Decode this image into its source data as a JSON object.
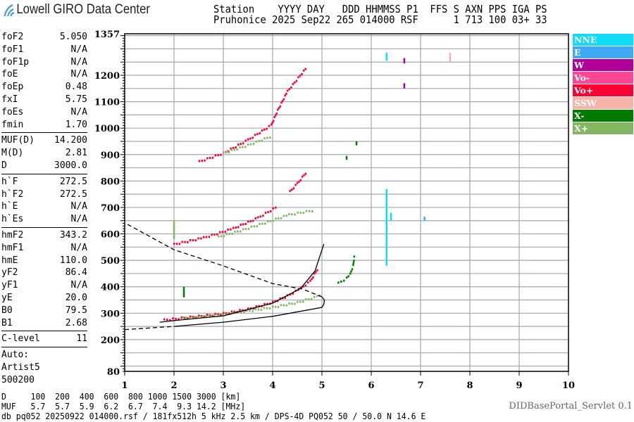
{
  "logo": {
    "text": "Lowell GIRO Data Center"
  },
  "header": {
    "line1": "Station    YYYY DAY   DDD HHMMSS P1  FFS S AXN PPS IGA PS",
    "line2": "Pruhonice 2025 Sep22 265 014000 RSF      1 713 100 03+ 33"
  },
  "params": [
    [
      {
        "k": "foF2",
        "v": "5.050"
      },
      {
        "k": "foF1",
        "v": "N/A"
      },
      {
        "k": "foF1p",
        "v": "N/A"
      },
      {
        "k": "foE",
        "v": "N/A"
      },
      {
        "k": "foEp",
        "v": "0.48"
      },
      {
        "k": "fxI",
        "v": "5.75"
      },
      {
        "k": "foEs",
        "v": "N/A"
      },
      {
        "k": "fmin",
        "v": "1.70"
      }
    ],
    [
      {
        "k": "MUF(D)",
        "v": "14.200"
      },
      {
        "k": "M(D)",
        "v": "2.81"
      },
      {
        "k": "D",
        "v": "3000.0"
      }
    ],
    [
      {
        "k": "h`F",
        "v": "272.5"
      },
      {
        "k": "h`F2",
        "v": "272.5"
      },
      {
        "k": "h`E",
        "v": "N/A"
      },
      {
        "k": "h`Es",
        "v": "N/A"
      }
    ],
    [
      {
        "k": "hmF2",
        "v": "343.2"
      },
      {
        "k": "hmF1",
        "v": "N/A"
      },
      {
        "k": "hmE",
        "v": "110.0"
      },
      {
        "k": "yF2",
        "v": "86.4"
      },
      {
        "k": "yF1",
        "v": "N/A"
      },
      {
        "k": "yE",
        "v": "20.0"
      },
      {
        "k": "B0",
        "v": "79.5"
      },
      {
        "k": "B1",
        "v": "2.68"
      }
    ],
    [
      {
        "k": "C-level",
        "v": "11"
      }
    ]
  ],
  "autoscaler": {
    "line1": "Auto:",
    "line2": "Artist5",
    "line3": "500200"
  },
  "legend": [
    {
      "label": "NNE",
      "color": "#11dcf8"
    },
    {
      "label": "E",
      "color": "#3fa9f5"
    },
    {
      "label": "W",
      "color": "#b0009b"
    },
    {
      "label": "Vo-",
      "color": "#ff4695"
    },
    {
      "label": "Vo+",
      "color": "#ff0033"
    },
    {
      "label": "SSW",
      "color": "#f7b3a8"
    },
    {
      "label": "X-",
      "color": "#007b00"
    },
    {
      "label": "X+",
      "color": "#84b563"
    }
  ],
  "bottom": {
    "d_line": "D     100  200  400  600  800 1000 1500 3000 [km]",
    "muf_line": "MUF   5.7  5.7  5.9  6.2  6.7  7.4  9.3 14.2 [MHz]",
    "file_line": "db pq052 20250922 014000.rsf / 181fx512h 5 kHz 2.5 km / DPS-4D PQ052 50 / 50.0 N 14.6 E"
  },
  "servlet": "DIDBasePortal_Servlet 0.1",
  "chart_data": {
    "type": "scatter",
    "xlabel": "",
    "ylabel": "",
    "xlim": [
      1,
      10
    ],
    "ylim": [
      80,
      1357
    ],
    "x_ticks": [
      1,
      2,
      3,
      4,
      5,
      6,
      7,
      8,
      9,
      10
    ],
    "y_ticks": [
      80,
      200,
      300,
      400,
      500,
      600,
      700,
      800,
      900,
      1000,
      1100,
      1200,
      1357
    ],
    "grid": true,
    "legend_placement": "right",
    "traces": [
      {
        "dir": "Vo+",
        "points": [
          [
            1.8,
            274
          ],
          [
            2.5,
            288
          ],
          [
            3,
            298
          ],
          [
            3.5,
            315
          ],
          [
            4,
            341
          ],
          [
            4.3,
            365
          ],
          [
            4.57,
            394
          ],
          [
            4.76,
            420
          ],
          [
            4.93,
            474
          ]
        ]
      },
      {
        "dir": "X+",
        "points": [
          [
            2.19,
            282
          ],
          [
            2.7,
            290
          ],
          [
            3.3,
            303
          ],
          [
            4,
            322
          ],
          [
            4.5,
            340
          ],
          [
            4.9,
            362
          ],
          [
            5,
            370
          ]
        ]
      },
      {
        "dir": "X-",
        "points": [
          [
            5.33,
            413
          ],
          [
            5.5,
            432
          ],
          [
            5.57,
            447
          ],
          [
            5.63,
            480
          ],
          [
            5.66,
            522
          ]
        ]
      },
      {
        "dir": "Vo+",
        "points": [
          [
            2.0,
            560
          ],
          [
            2.6,
            585
          ],
          [
            3.2,
            620
          ],
          [
            3.7,
            660
          ],
          [
            4.11,
            705
          ]
        ]
      },
      {
        "dir": "Vo+",
        "points": [
          [
            4.35,
            760
          ],
          [
            4.5,
            790
          ],
          [
            4.7,
            838
          ]
        ]
      },
      {
        "dir": "X+",
        "points": [
          [
            2.9,
            588
          ],
          [
            3.4,
            615
          ],
          [
            3.9,
            645
          ],
          [
            4.33,
            672
          ],
          [
            4.86,
            690
          ]
        ]
      },
      {
        "dir": "Vo+",
        "points": [
          [
            2.51,
            873
          ],
          [
            3,
            905
          ],
          [
            3.5,
            955
          ],
          [
            3.97,
            1011
          ],
          [
            4.1,
            1067
          ],
          [
            4.3,
            1139
          ],
          [
            4.7,
            1232
          ]
        ]
      },
      {
        "dir": "X+",
        "points": [
          [
            3,
            905
          ],
          [
            3.5,
            935
          ],
          [
            4,
            971
          ]
        ]
      }
    ],
    "spikes": [
      {
        "dir": "NNE",
        "f": 6.31,
        "h": [
          480,
          770
        ]
      },
      {
        "dir": "NNE",
        "f": 6.31,
        "h": [
          1255,
          1285
        ]
      },
      {
        "dir": "SSW",
        "f": 7.6,
        "h": [
          1250,
          1285
        ]
      },
      {
        "dir": "X-",
        "f": 5.5,
        "h": [
          880,
          895
        ]
      },
      {
        "dir": "X-",
        "f": 5.7,
        "h": [
          935,
          950
        ]
      },
      {
        "dir": "W",
        "f": 6.67,
        "h": [
          1245,
          1265
        ]
      },
      {
        "dir": "W",
        "f": 6.67,
        "h": [
          1150,
          1170
        ]
      },
      {
        "dir": "X+",
        "f": 2.0,
        "h": [
          580,
          650
        ]
      },
      {
        "dir": "X-",
        "f": 2.2,
        "h": [
          360,
          400
        ]
      },
      {
        "dir": "NNE",
        "f": 6.4,
        "h": [
          650,
          680
        ]
      },
      {
        "dir": "E",
        "f": 7.08,
        "h": [
          650,
          665
        ]
      }
    ],
    "model_curves": [
      {
        "style": "solid",
        "points": [
          [
            1.71,
            266
          ],
          [
            2,
            272
          ],
          [
            3,
            290
          ],
          [
            4,
            338
          ],
          [
            4.57,
            394
          ],
          [
            4.86,
            460
          ],
          [
            5.04,
            562
          ]
        ]
      },
      {
        "style": "solid",
        "points": [
          [
            2,
            250
          ],
          [
            3,
            266
          ],
          [
            4,
            288
          ],
          [
            5,
            322
          ],
          [
            5.04,
            335
          ],
          [
            5.05,
            350
          ],
          [
            5.0,
            362
          ]
        ]
      },
      {
        "style": "dashed",
        "points": [
          [
            1.0,
            238
          ],
          [
            2,
            250
          ]
        ]
      },
      {
        "style": "dashed",
        "points": [
          [
            1.06,
            636
          ],
          [
            2,
            540
          ],
          [
            3,
            479
          ],
          [
            4,
            412
          ],
          [
            4.61,
            391
          ],
          [
            4.93,
            367
          ],
          [
            5.0,
            362
          ]
        ]
      }
    ]
  }
}
